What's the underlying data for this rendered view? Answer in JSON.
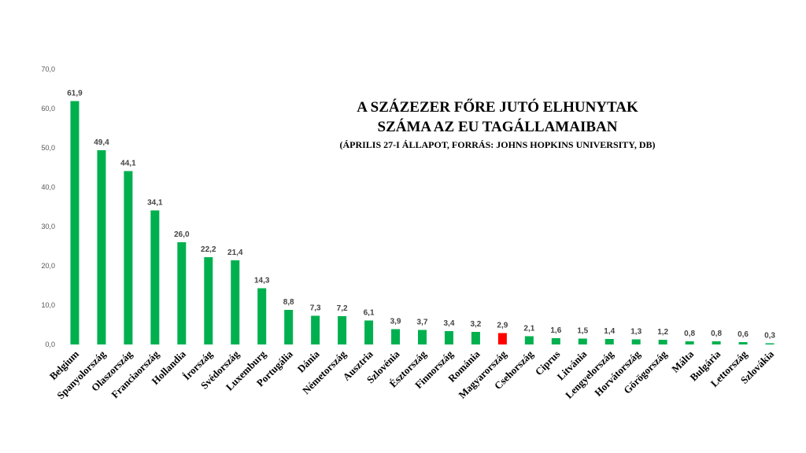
{
  "chart_data": {
    "type": "bar",
    "title": "A SZÁZEZER FŐRE JUTÓ ELHUNYTAK",
    "title_line2": "SZÁMA AZ EU TAGÁLLAMAIBAN",
    "subtitle": "(ÁPRILIS 27-I ÁLLAPOT, FORRÁS: JOHNS HOPKINS UNIVERSITY, DB)",
    "xlabel": "",
    "ylabel": "",
    "ylim": [
      0,
      70
    ],
    "yticks": [
      "0,0",
      "10,0",
      "20,0",
      "30,0",
      "40,0",
      "50,0",
      "60,0",
      "70,0"
    ],
    "grid": false,
    "categories": [
      "Belgium",
      "Spanyolország",
      "Olaszország",
      "Franciaország",
      "Hollandia",
      "Írország",
      "Svédország",
      "Luxemburg",
      "Portugália",
      "Dánia",
      "Németország",
      "Ausztria",
      "Szlovénia",
      "Észtország",
      "Finnország",
      "Románia",
      "Magyarország",
      "Csehország",
      "Ciprus",
      "Litvánia",
      "Lengyelország",
      "Horvátország",
      "Görögország",
      "Málta",
      "Bulgária",
      "Lettország",
      "Szlovákia"
    ],
    "values": [
      61.9,
      49.4,
      44.1,
      34.1,
      26.0,
      22.2,
      21.4,
      14.3,
      8.8,
      7.3,
      7.2,
      6.1,
      3.9,
      3.7,
      3.4,
      3.2,
      2.9,
      2.1,
      1.6,
      1.5,
      1.4,
      1.3,
      1.2,
      0.8,
      0.8,
      0.6,
      0.3
    ],
    "value_labels": [
      "61,9",
      "49,4",
      "44,1",
      "34,1",
      "26,0",
      "22,2",
      "21,4",
      "14,3",
      "8,8",
      "7,3",
      "7,2",
      "6,1",
      "3,9",
      "3,7",
      "3,4",
      "3,2",
      "2,9",
      "2,1",
      "1,6",
      "1,5",
      "1,4",
      "1,3",
      "1,2",
      "0,8",
      "0,8",
      "0,6",
      "0,3"
    ],
    "colors": {
      "bar": "#00b04f",
      "highlight": "#ff0000"
    },
    "highlight_category": "Magyarország"
  }
}
